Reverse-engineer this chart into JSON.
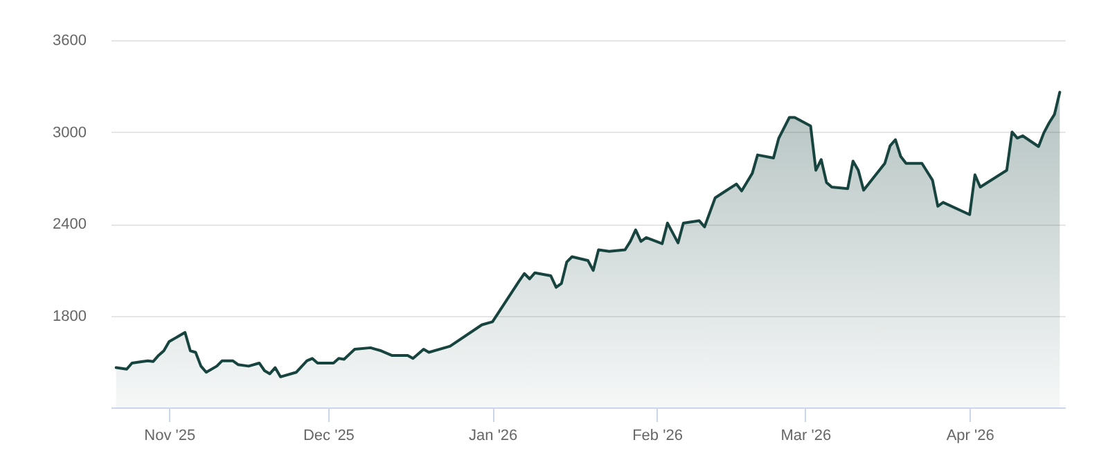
{
  "chart_data": {
    "type": "area",
    "grid": "y",
    "x": [
      "2025-10-22",
      "2025-10-24",
      "2025-10-25",
      "2025-10-27",
      "2025-10-28",
      "2025-10-29",
      "2025-10-30",
      "2025-10-31",
      "2025-11-01",
      "2025-11-04",
      "2025-11-05",
      "2025-11-06",
      "2025-11-07",
      "2025-11-08",
      "2025-11-10",
      "2025-11-11",
      "2025-11-13",
      "2025-11-14",
      "2025-11-16",
      "2025-11-18",
      "2025-11-19",
      "2025-11-20",
      "2025-11-21",
      "2025-11-22",
      "2025-11-25",
      "2025-11-27",
      "2025-11-28",
      "2025-11-29",
      "2025-12-02",
      "2025-12-03",
      "2025-12-04",
      "2025-12-06",
      "2025-12-09",
      "2025-12-10",
      "2025-12-11",
      "2025-12-13",
      "2025-12-16",
      "2025-12-17",
      "2025-12-19",
      "2025-12-20",
      "2025-12-24",
      "2025-12-30",
      "2026-01-01",
      "2026-01-06",
      "2026-01-07",
      "2026-01-08",
      "2026-01-09",
      "2026-01-12",
      "2026-01-13",
      "2026-01-14",
      "2026-01-15",
      "2026-01-16",
      "2026-01-19",
      "2026-01-20",
      "2026-01-21",
      "2026-01-23",
      "2026-01-26",
      "2026-01-27",
      "2026-01-28",
      "2026-01-29",
      "2026-01-30",
      "2026-02-02",
      "2026-02-03",
      "2026-02-05",
      "2026-02-06",
      "2026-02-09",
      "2026-02-10",
      "2026-02-12",
      "2026-02-14",
      "2026-02-16",
      "2026-02-17",
      "2026-02-19",
      "2026-02-20",
      "2026-02-23",
      "2026-02-24",
      "2026-02-26",
      "2026-02-27",
      "2026-03-02",
      "2026-03-03",
      "2026-03-04",
      "2026-03-05",
      "2026-03-06",
      "2026-03-09",
      "2026-03-10",
      "2026-03-11",
      "2026-03-12",
      "2026-03-16",
      "2026-03-17",
      "2026-03-18",
      "2026-03-19",
      "2026-03-20",
      "2026-03-23",
      "2026-03-25",
      "2026-03-26",
      "2026-03-27",
      "2026-04-01",
      "2026-04-02",
      "2026-04-03",
      "2026-04-08",
      "2026-04-09",
      "2026-04-10",
      "2026-04-11",
      "2026-04-14",
      "2026-04-15",
      "2026-04-16",
      "2026-04-17",
      "2026-04-18"
    ],
    "series": [
      {
        "color": "#17443f",
        "values": [
          1460,
          1450,
          1490,
          1500,
          1505,
          1500,
          1540,
          1570,
          1630,
          1690,
          1570,
          1560,
          1470,
          1430,
          1470,
          1505,
          1505,
          1480,
          1470,
          1490,
          1440,
          1420,
          1460,
          1400,
          1430,
          1505,
          1520,
          1490,
          1490,
          1520,
          1515,
          1580,
          1590,
          1580,
          1570,
          1540,
          1540,
          1520,
          1580,
          1560,
          1600,
          1740,
          1760,
          2025,
          2075,
          2040,
          2080,
          2060,
          1985,
          2010,
          2150,
          2185,
          2160,
          2095,
          2230,
          2220,
          2230,
          2285,
          2360,
          2285,
          2310,
          2270,
          2405,
          2275,
          2405,
          2420,
          2380,
          2570,
          2615,
          2660,
          2615,
          2730,
          2850,
          2830,
          2960,
          3095,
          3095,
          3040,
          2750,
          2820,
          2670,
          2640,
          2630,
          2810,
          2750,
          2620,
          2795,
          2910,
          2950,
          2840,
          2795,
          2795,
          2685,
          2515,
          2540,
          2460,
          2720,
          2640,
          2750,
          3000,
          2960,
          2975,
          2905,
          2995,
          3060,
          3115,
          3260
        ]
      }
    ],
    "xlim": [
      "2025-10-21",
      "2026-04-19"
    ],
    "xticks": [
      {
        "value": "2025-11-01",
        "label": "Nov '25"
      },
      {
        "value": "2025-12-01",
        "label": "Dec '25"
      },
      {
        "value": "2026-01-01",
        "label": "Jan '26"
      },
      {
        "value": "2026-02-01",
        "label": "Feb '26"
      },
      {
        "value": "2026-03-01",
        "label": "Mar '26"
      },
      {
        "value": "2026-04-01",
        "label": "Apr '26"
      }
    ],
    "ylim": [
      1200,
      3600
    ],
    "yticks": [
      1800,
      2400,
      3000,
      3600
    ]
  }
}
